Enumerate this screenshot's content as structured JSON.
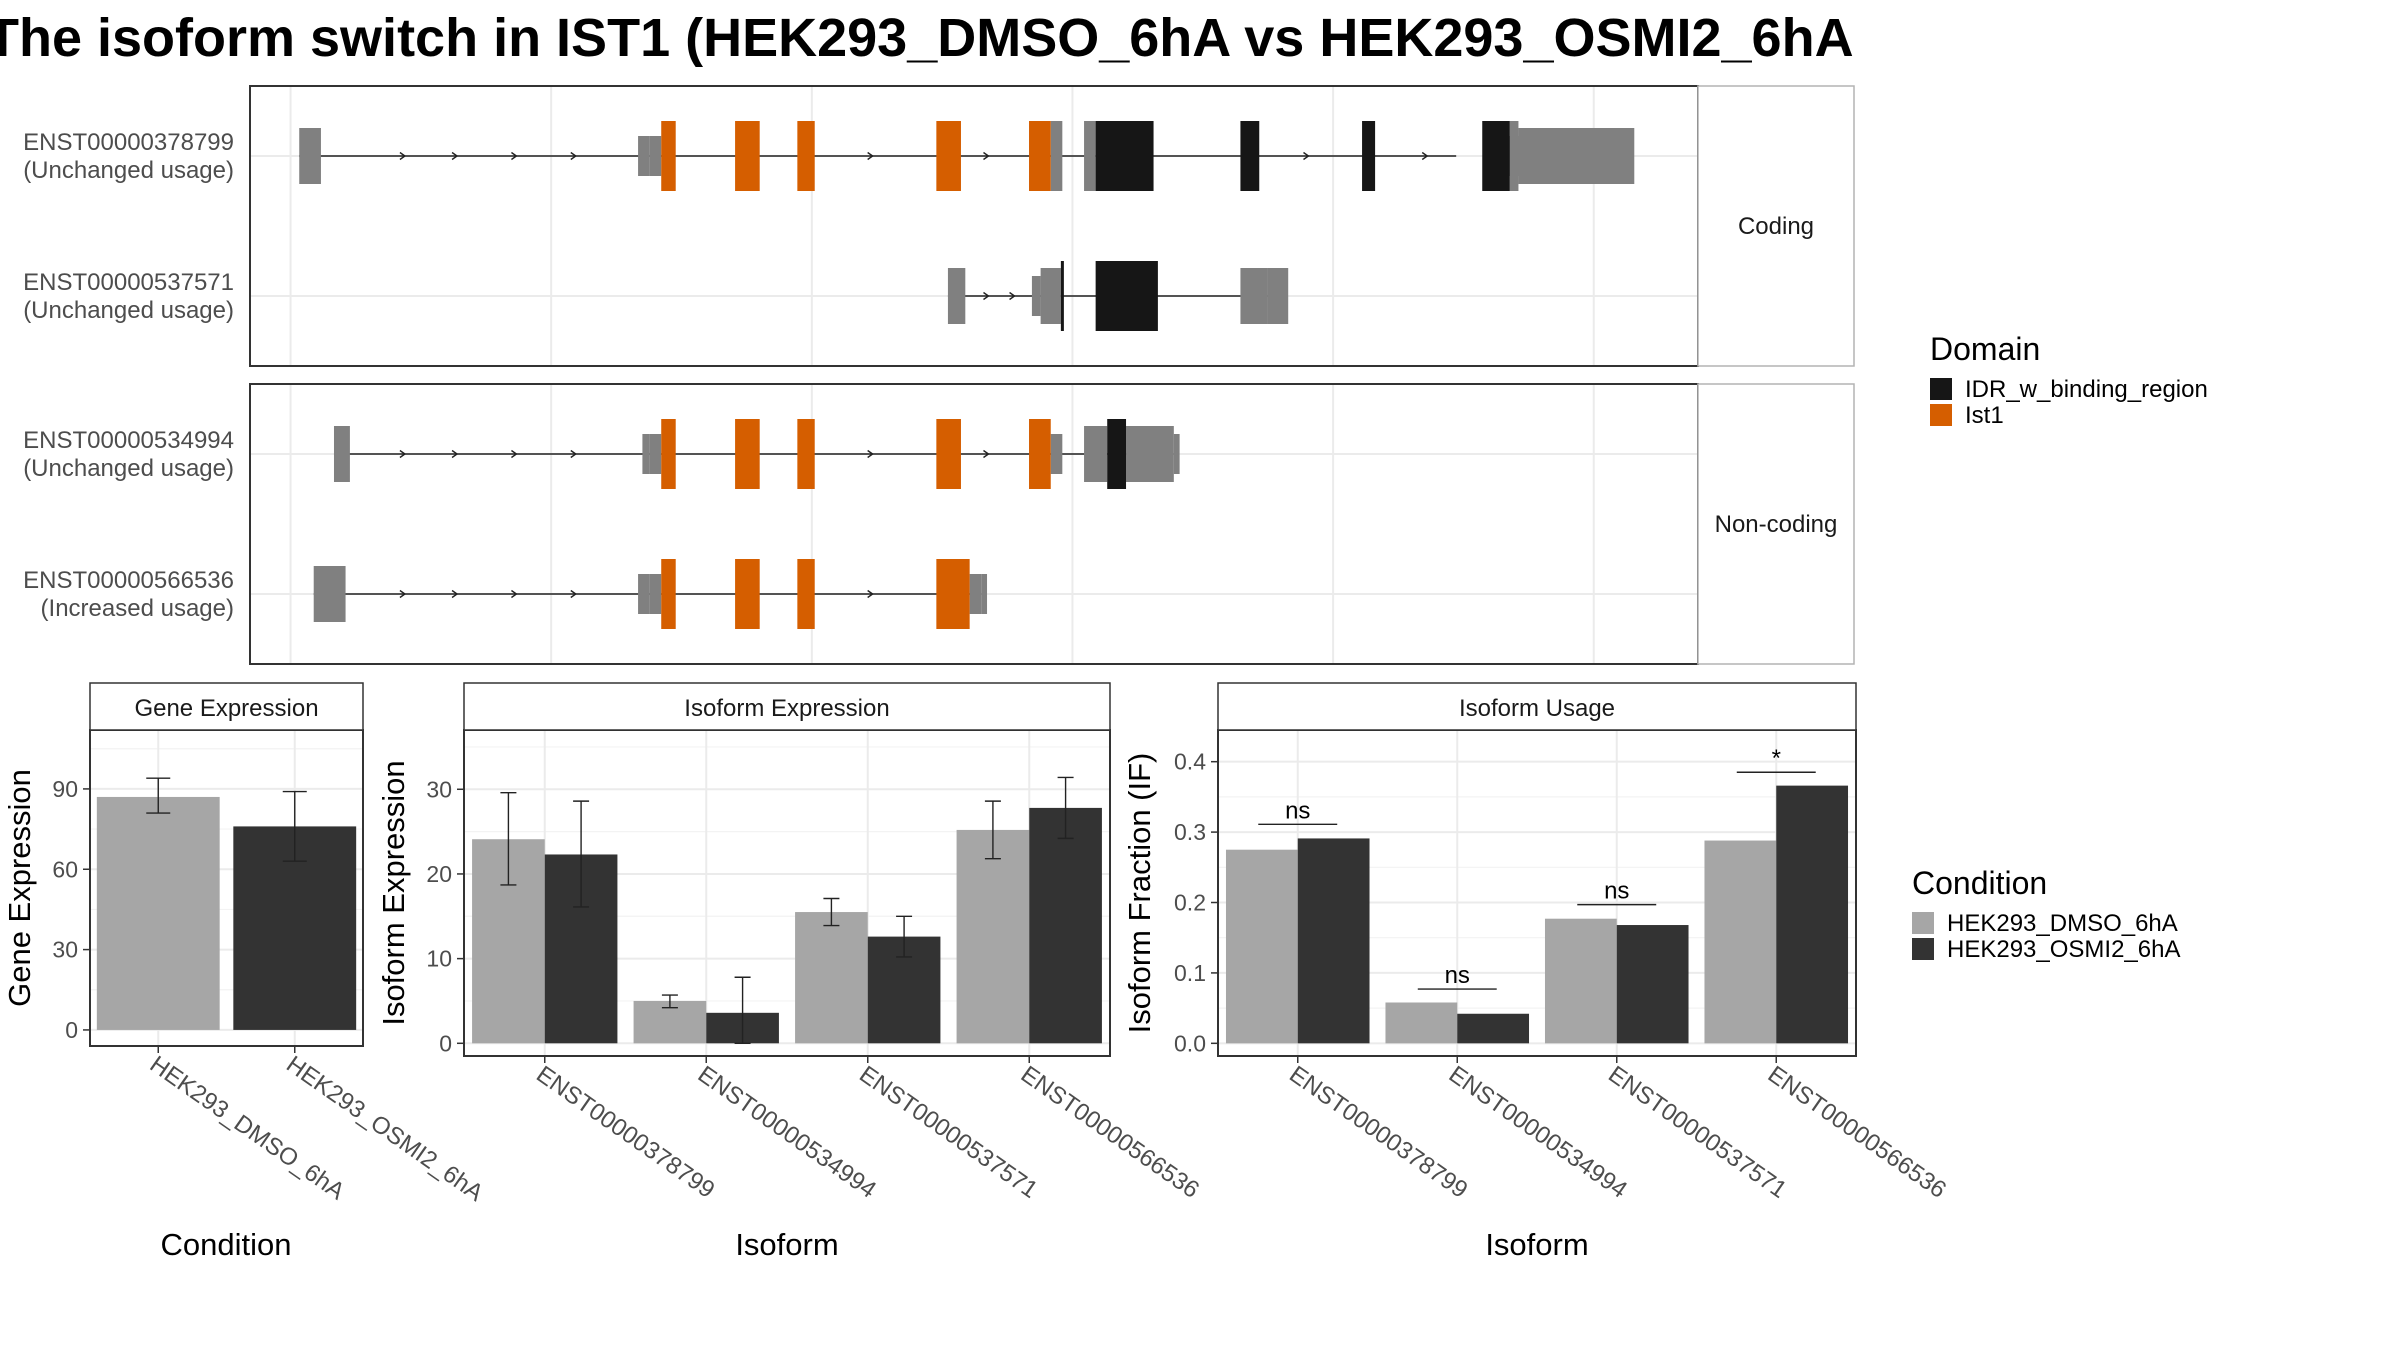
{
  "title": "The isoform switch in IST1 (HEK293_DMSO_6hA vs HEK293_OSMI2_6hA",
  "colors": {
    "ist1": "#D55E00",
    "idr": "#161616",
    "utr": "#808080",
    "dmso": "#a6a6a6",
    "osmi": "#333333",
    "grid": "#ebebeb",
    "strip_bg": "#ffffff"
  },
  "legends": {
    "domain": {
      "title": "Domain",
      "items": [
        {
          "label": "IDR_w_binding_region",
          "color": "#161616"
        },
        {
          "label": "Ist1",
          "color": "#D55E00"
        }
      ]
    },
    "condition": {
      "title": "Condition",
      "items": [
        {
          "label": "HEK293_DMSO_6hA",
          "color": "#a6a6a6"
        },
        {
          "label": "HEK293_OSMI2_6hA",
          "color": "#333333"
        }
      ]
    }
  },
  "structure": {
    "panels": [
      {
        "strip": "Coding",
        "isoforms": [
          {
            "id": "ENST00000378799",
            "status": "(Unchanged usage)",
            "line": [
              0.034,
              0.833
            ],
            "utr": [
              [
                0.034,
                0.049
              ],
              [
                0.268,
                0.276
              ],
              [
                0.276,
                0.284
              ],
              [
                0.54,
                0.549
              ],
              [
                0.868,
                0.876
              ],
              [
                0.876,
                0.956
              ]
            ],
            "small_utr": [
              [
                0.268,
                0.276
              ]
            ],
            "ist1": [
              [
                0.284,
                0.294
              ],
              [
                0.335,
                0.352
              ],
              [
                0.378,
                0.39
              ],
              [
                0.474,
                0.491
              ],
              [
                0.538,
                0.553
              ]
            ],
            "idr": [
              [
                0.584,
                0.624
              ],
              [
                0.684,
                0.697
              ],
              [
                0.768,
                0.777
              ],
              [
                0.851,
                0.87
              ]
            ],
            "utr_pieces": [
              [
                0.553,
                0.561
              ],
              [
                0.576,
                0.584
              ],
              [
                0.87,
                0.876
              ]
            ],
            "arrows": [
              0.107,
              0.143,
              0.184,
              0.225,
              0.43,
              0.51,
              0.731,
              0.813
            ]
          },
          {
            "id": "ENST00000537571",
            "status": "(Unchanged usage)",
            "line": [
              0.482,
              0.71
            ],
            "utr": [
              [
                0.482,
                0.494
              ],
              [
                0.54,
                0.546
              ],
              [
                0.546,
                0.56
              ],
              [
                0.684,
                0.703
              ],
              [
                0.703,
                0.717
              ]
            ],
            "ist1": [],
            "idr": [
              [
                0.56,
                0.562
              ],
              [
                0.584,
                0.627
              ]
            ],
            "arrows": [
              0.51,
              0.528
            ]
          }
        ]
      },
      {
        "strip": "Non-coding",
        "isoforms": [
          {
            "id": "ENST00000534994",
            "status": "(Unchanged usage)",
            "line": [
              0.058,
              0.638
            ],
            "utr": [
              [
                0.058,
                0.069
              ],
              [
                0.271,
                0.276
              ],
              [
                0.276,
                0.284
              ],
              [
                0.553,
                0.561
              ],
              [
                0.576,
                0.592
              ],
              [
                0.605,
                0.638
              ],
              [
                0.638,
                0.642
              ]
            ],
            "ist1": [
              [
                0.284,
                0.294
              ],
              [
                0.335,
                0.352
              ],
              [
                0.378,
                0.39
              ],
              [
                0.474,
                0.491
              ],
              [
                0.538,
                0.553
              ]
            ],
            "idr": [
              [
                0.592,
                0.605
              ]
            ],
            "arrows": [
              0.107,
              0.143,
              0.184,
              0.225,
              0.43,
              0.51
            ]
          },
          {
            "id": "ENST00000566536",
            "status": "(Increased usage)",
            "line": [
              0.044,
              0.505
            ],
            "utr": [
              [
                0.044,
                0.066
              ],
              [
                0.268,
                0.276
              ],
              [
                0.276,
                0.284
              ],
              [
                0.497,
                0.505
              ],
              [
                0.505,
                0.509
              ]
            ],
            "ist1": [
              [
                0.284,
                0.294
              ],
              [
                0.335,
                0.352
              ],
              [
                0.378,
                0.39
              ],
              [
                0.474,
                0.497
              ]
            ],
            "idr": [],
            "arrows": [
              0.107,
              0.143,
              0.184,
              0.225,
              0.43
            ]
          }
        ]
      }
    ]
  },
  "chart_data": [
    {
      "type": "bar",
      "strip": "Gene Expression",
      "xlabel": "Condition",
      "ylabel": "Gene Expression",
      "categories": [
        "HEK293_DMSO_6hA",
        "HEK293_OSMI2_6hA"
      ],
      "ylim": [
        -6,
        112
      ],
      "yticks": [
        0,
        30,
        60,
        90
      ],
      "values": [
        87,
        76
      ],
      "err_low": [
        81,
        63
      ],
      "err_high": [
        94,
        89
      ],
      "colors": [
        "#a6a6a6",
        "#333333"
      ]
    },
    {
      "type": "bar",
      "strip": "Isoform Expression",
      "xlabel": "Isoform",
      "ylabel": "Isoform Expression",
      "categories": [
        "ENST00000378799",
        "ENST00000534994",
        "ENST00000537571",
        "ENST00000566536"
      ],
      "ylim": [
        -1.5,
        37
      ],
      "yticks": [
        0,
        10,
        20,
        30
      ],
      "series": [
        {
          "name": "HEK293_DMSO_6hA",
          "values": [
            24.1,
            5.0,
            15.5,
            25.2
          ],
          "err_low": [
            18.7,
            4.2,
            13.9,
            21.8
          ],
          "err_high": [
            29.6,
            5.7,
            17.1,
            28.6
          ]
        },
        {
          "name": "HEK293_OSMI2_6hA",
          "values": [
            22.3,
            3.6,
            12.6,
            27.8
          ],
          "err_low": [
            16.1,
            0,
            10.2,
            24.2
          ],
          "err_high": [
            28.6,
            7.8,
            15.0,
            31.4
          ]
        }
      ]
    },
    {
      "type": "bar",
      "strip": "Isoform Usage",
      "xlabel": "Isoform",
      "ylabel": "Isoform Fraction (IF)",
      "categories": [
        "ENST00000378799",
        "ENST00000534994",
        "ENST00000537571",
        "ENST00000566536"
      ],
      "ylim": [
        -0.018,
        0.445
      ],
      "yticks": [
        0.0,
        0.1,
        0.2,
        0.3,
        0.4
      ],
      "series": [
        {
          "name": "HEK293_DMSO_6hA",
          "values": [
            0.275,
            0.058,
            0.177,
            0.288
          ]
        },
        {
          "name": "HEK293_OSMI2_6hA",
          "values": [
            0.291,
            0.042,
            0.168,
            0.366
          ]
        }
      ],
      "significance": [
        {
          "label": "ns",
          "y": 0.311
        },
        {
          "label": "ns",
          "y": 0.077
        },
        {
          "label": "ns",
          "y": 0.197
        },
        {
          "label": "*",
          "y": 0.385
        }
      ]
    }
  ]
}
